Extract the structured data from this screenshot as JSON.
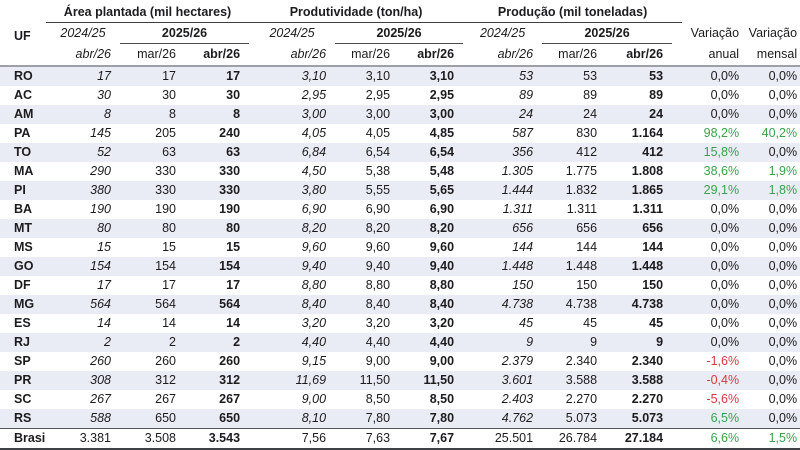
{
  "colors": {
    "positive": "#3aa14e",
    "negative": "#d23b41",
    "stripe": "#e9ecf4",
    "text": "#1c1c1e"
  },
  "header": {
    "uf_label": "UF",
    "groups": [
      {
        "title": "Área plantada (mil hectares)"
      },
      {
        "title": "Produtividade (ton/ha)"
      },
      {
        "title": "Produção (mil toneladas)"
      }
    ],
    "season_prev": "2024/25",
    "season_curr": "2025/26",
    "month_prev": "abr/26",
    "month_mar": "mar/26",
    "month_abr": "abr/26",
    "var_annual": {
      "line1": "Variação",
      "line2": "anual"
    },
    "var_monthly": {
      "line1": "Variação",
      "line2": "mensal"
    }
  },
  "rows": [
    {
      "uf": "RO",
      "area": [
        "17",
        "17",
        "17"
      ],
      "yield": [
        "3,10",
        "3,10",
        "3,10"
      ],
      "production": [
        "53",
        "53",
        "53"
      ],
      "var_annual": {
        "text": "0,0%",
        "tone": "zero"
      },
      "var_monthly": {
        "text": "0,0%",
        "tone": "zero"
      }
    },
    {
      "uf": "AC",
      "area": [
        "30",
        "30",
        "30"
      ],
      "yield": [
        "2,95",
        "2,95",
        "2,95"
      ],
      "production": [
        "89",
        "89",
        "89"
      ],
      "var_annual": {
        "text": "0,0%",
        "tone": "zero"
      },
      "var_monthly": {
        "text": "0,0%",
        "tone": "zero"
      }
    },
    {
      "uf": "AM",
      "area": [
        "8",
        "8",
        "8"
      ],
      "yield": [
        "3,00",
        "3,00",
        "3,00"
      ],
      "production": [
        "24",
        "24",
        "24"
      ],
      "var_annual": {
        "text": "0,0%",
        "tone": "zero"
      },
      "var_monthly": {
        "text": "0,0%",
        "tone": "zero"
      }
    },
    {
      "uf": "PA",
      "area": [
        "145",
        "205",
        "240"
      ],
      "yield": [
        "4,05",
        "4,05",
        "4,85"
      ],
      "production": [
        "587",
        "830",
        "1.164"
      ],
      "var_annual": {
        "text": "98,2%",
        "tone": "pos"
      },
      "var_monthly": {
        "text": "40,2%",
        "tone": "pos"
      }
    },
    {
      "uf": "TO",
      "area": [
        "52",
        "63",
        "63"
      ],
      "yield": [
        "6,84",
        "6,54",
        "6,54"
      ],
      "production": [
        "356",
        "412",
        "412"
      ],
      "var_annual": {
        "text": "15,8%",
        "tone": "pos"
      },
      "var_monthly": {
        "text": "0,0%",
        "tone": "zero"
      }
    },
    {
      "uf": "MA",
      "area": [
        "290",
        "330",
        "330"
      ],
      "yield": [
        "4,50",
        "5,38",
        "5,48"
      ],
      "production": [
        "1.305",
        "1.775",
        "1.808"
      ],
      "var_annual": {
        "text": "38,6%",
        "tone": "pos"
      },
      "var_monthly": {
        "text": "1,9%",
        "tone": "pos"
      }
    },
    {
      "uf": "PI",
      "area": [
        "380",
        "330",
        "330"
      ],
      "yield": [
        "3,80",
        "5,55",
        "5,65"
      ],
      "production": [
        "1.444",
        "1.832",
        "1.865"
      ],
      "var_annual": {
        "text": "29,1%",
        "tone": "pos"
      },
      "var_monthly": {
        "text": "1,8%",
        "tone": "pos"
      }
    },
    {
      "uf": "BA",
      "area": [
        "190",
        "190",
        "190"
      ],
      "yield": [
        "6,90",
        "6,90",
        "6,90"
      ],
      "production": [
        "1.311",
        "1.311",
        "1.311"
      ],
      "var_annual": {
        "text": "0,0%",
        "tone": "zero"
      },
      "var_monthly": {
        "text": "0,0%",
        "tone": "zero"
      }
    },
    {
      "uf": "MT",
      "area": [
        "80",
        "80",
        "80"
      ],
      "yield": [
        "8,20",
        "8,20",
        "8,20"
      ],
      "production": [
        "656",
        "656",
        "656"
      ],
      "var_annual": {
        "text": "0,0%",
        "tone": "zero"
      },
      "var_monthly": {
        "text": "0,0%",
        "tone": "zero"
      }
    },
    {
      "uf": "MS",
      "area": [
        "15",
        "15",
        "15"
      ],
      "yield": [
        "9,60",
        "9,60",
        "9,60"
      ],
      "production": [
        "144",
        "144",
        "144"
      ],
      "var_annual": {
        "text": "0,0%",
        "tone": "zero"
      },
      "var_monthly": {
        "text": "0,0%",
        "tone": "zero"
      }
    },
    {
      "uf": "GO",
      "area": [
        "154",
        "154",
        "154"
      ],
      "yield": [
        "9,40",
        "9,40",
        "9,40"
      ],
      "production": [
        "1.448",
        "1.448",
        "1.448"
      ],
      "var_annual": {
        "text": "0,0%",
        "tone": "zero"
      },
      "var_monthly": {
        "text": "0,0%",
        "tone": "zero"
      }
    },
    {
      "uf": "DF",
      "area": [
        "17",
        "17",
        "17"
      ],
      "yield": [
        "8,80",
        "8,80",
        "8,80"
      ],
      "production": [
        "150",
        "150",
        "150"
      ],
      "var_annual": {
        "text": "0,0%",
        "tone": "zero"
      },
      "var_monthly": {
        "text": "0,0%",
        "tone": "zero"
      }
    },
    {
      "uf": "MG",
      "area": [
        "564",
        "564",
        "564"
      ],
      "yield": [
        "8,40",
        "8,40",
        "8,40"
      ],
      "production": [
        "4.738",
        "4.738",
        "4.738"
      ],
      "var_annual": {
        "text": "0,0%",
        "tone": "zero"
      },
      "var_monthly": {
        "text": "0,0%",
        "tone": "zero"
      }
    },
    {
      "uf": "ES",
      "area": [
        "14",
        "14",
        "14"
      ],
      "yield": [
        "3,20",
        "3,20",
        "3,20"
      ],
      "production": [
        "45",
        "45",
        "45"
      ],
      "var_annual": {
        "text": "0,0%",
        "tone": "zero"
      },
      "var_monthly": {
        "text": "0,0%",
        "tone": "zero"
      }
    },
    {
      "uf": "RJ",
      "area": [
        "2",
        "2",
        "2"
      ],
      "yield": [
        "4,40",
        "4,40",
        "4,40"
      ],
      "production": [
        "9",
        "9",
        "9"
      ],
      "var_annual": {
        "text": "0,0%",
        "tone": "zero"
      },
      "var_monthly": {
        "text": "0,0%",
        "tone": "zero"
      }
    },
    {
      "uf": "SP",
      "area": [
        "260",
        "260",
        "260"
      ],
      "yield": [
        "9,15",
        "9,00",
        "9,00"
      ],
      "production": [
        "2.379",
        "2.340",
        "2.340"
      ],
      "var_annual": {
        "text": "-1,6%",
        "tone": "neg"
      },
      "var_monthly": {
        "text": "0,0%",
        "tone": "zero"
      }
    },
    {
      "uf": "PR",
      "area": [
        "308",
        "312",
        "312"
      ],
      "yield": [
        "11,69",
        "11,50",
        "11,50"
      ],
      "production": [
        "3.601",
        "3.588",
        "3.588"
      ],
      "var_annual": {
        "text": "-0,4%",
        "tone": "neg"
      },
      "var_monthly": {
        "text": "0,0%",
        "tone": "zero"
      }
    },
    {
      "uf": "SC",
      "area": [
        "267",
        "267",
        "267"
      ],
      "yield": [
        "9,00",
        "8,50",
        "8,50"
      ],
      "production": [
        "2.403",
        "2.270",
        "2.270"
      ],
      "var_annual": {
        "text": "-5,6%",
        "tone": "neg"
      },
      "var_monthly": {
        "text": "0,0%",
        "tone": "zero"
      }
    },
    {
      "uf": "RS",
      "area": [
        "588",
        "650",
        "650"
      ],
      "yield": [
        "8,10",
        "7,80",
        "7,80"
      ],
      "production": [
        "4.762",
        "5.073",
        "5.073"
      ],
      "var_annual": {
        "text": "6,5%",
        "tone": "pos"
      },
      "var_monthly": {
        "text": "0,0%",
        "tone": "zero"
      }
    }
  ],
  "total_row": {
    "uf": "Brasil",
    "area": [
      "3.381",
      "3.508",
      "3.543"
    ],
    "yield": [
      "7,56",
      "7,63",
      "7,67"
    ],
    "production": [
      "25.501",
      "26.784",
      "27.184"
    ],
    "var_annual": {
      "text": "6,6%",
      "tone": "pos"
    },
    "var_monthly": {
      "text": "1,5%",
      "tone": "pos"
    }
  }
}
